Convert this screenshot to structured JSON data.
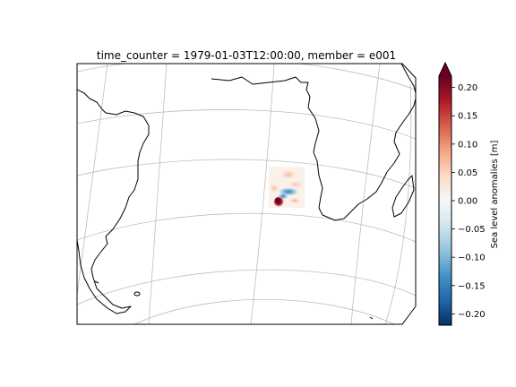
{
  "title": "time_counter = 1979-01-03T12:00:00, member = e001",
  "colorbar": {
    "label": "Sea level anomalies [m]",
    "ticks": [
      "0.20",
      "0.15",
      "0.10",
      "0.05",
      "0.00",
      "−0.05",
      "−0.10",
      "−0.15",
      "−0.20"
    ],
    "tick_values": [
      0.2,
      0.15,
      0.1,
      0.05,
      0.0,
      -0.05,
      -0.1,
      -0.15,
      -0.2
    ],
    "vmin": -0.22,
    "vmax": 0.22,
    "extend": "both",
    "colormap": "RdBu_r",
    "stops": [
      "#053061",
      "#2166ac",
      "#4393c3",
      "#92c5de",
      "#d1e5f0",
      "#f7f7f7",
      "#fddbc7",
      "#f4a582",
      "#d6604d",
      "#b2182b",
      "#67001f"
    ]
  }
}
